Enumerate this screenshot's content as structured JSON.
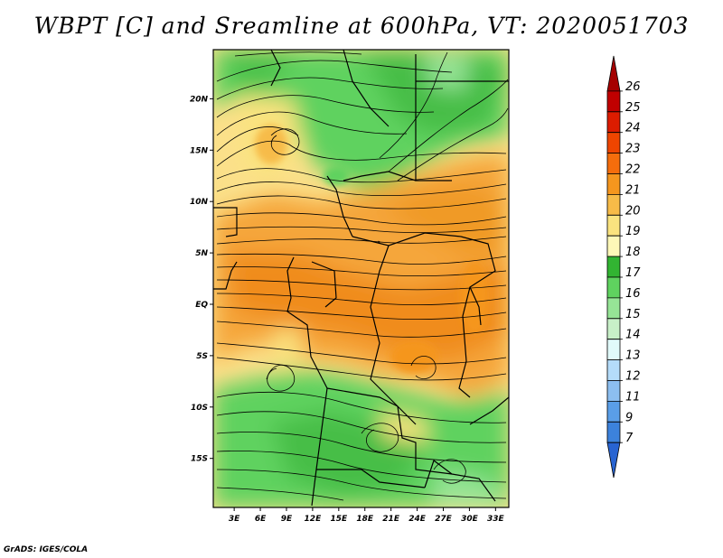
{
  "title": "WBPT [C] and Sreamline at 600hPa, VT: 2020051703",
  "credit": "GrADS: IGES/COLA",
  "map": {
    "lat_ticks": [
      {
        "lat": 20,
        "label": "20N"
      },
      {
        "lat": 15,
        "label": "15N"
      },
      {
        "lat": 10,
        "label": "10N"
      },
      {
        "lat": 5,
        "label": "5N"
      },
      {
        "lat": 0,
        "label": "EQ"
      },
      {
        "lat": -5,
        "label": "5S"
      },
      {
        "lat": -10,
        "label": "10S"
      },
      {
        "lat": -15,
        "label": "15S"
      }
    ],
    "lon_ticks": [
      {
        "lon": 3,
        "label": "3E"
      },
      {
        "lon": 6,
        "label": "6E"
      },
      {
        "lon": 9,
        "label": "9E"
      },
      {
        "lon": 12,
        "label": "12E"
      },
      {
        "lon": 15,
        "label": "15E"
      },
      {
        "lon": 18,
        "label": "18E"
      },
      {
        "lon": 21,
        "label": "21E"
      },
      {
        "lon": 24,
        "label": "24E"
      },
      {
        "lon": 27,
        "label": "27E"
      },
      {
        "lon": 30,
        "label": "30E"
      },
      {
        "lon": 33,
        "label": "33E"
      }
    ]
  },
  "colorbar": {
    "labels": [
      "26",
      "25",
      "24",
      "23",
      "22",
      "21",
      "20",
      "19",
      "18",
      "17",
      "16",
      "15",
      "14",
      "13",
      "12",
      "11",
      "9",
      "7"
    ],
    "colors": [
      "#a50000",
      "#c00000",
      "#dc1c00",
      "#ee4500",
      "#f56d0c",
      "#f5961e",
      "#f7bb48",
      "#fae37f",
      "#fdf8b8",
      "#32b432",
      "#5fd25f",
      "#96e496",
      "#c8f0c8",
      "#e1fafa",
      "#b4dcfa",
      "#8cbef0",
      "#5a9ee8",
      "#3c82dc",
      "#2864d2"
    ]
  }
}
